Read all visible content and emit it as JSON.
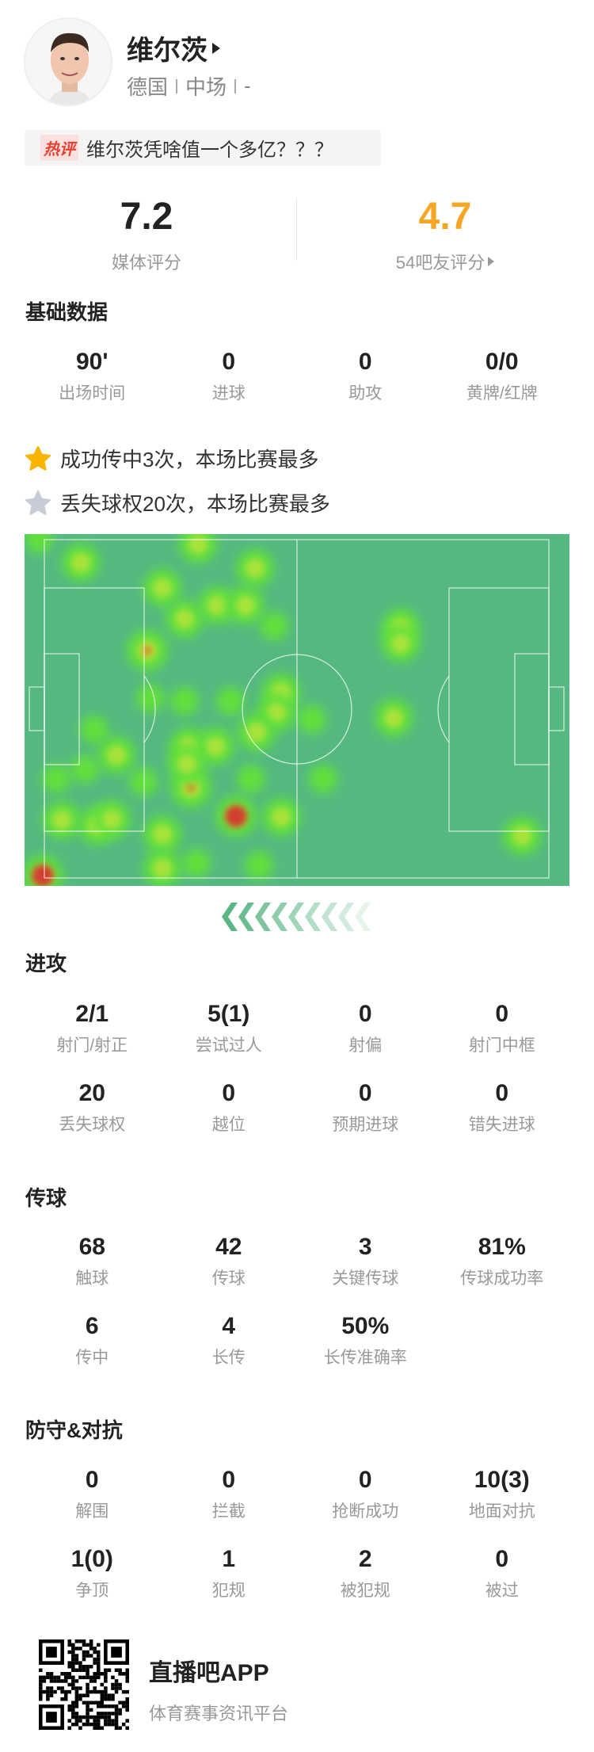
{
  "player": {
    "name": "维尔茨",
    "country": "德国",
    "position": "中场",
    "number": "-"
  },
  "hot_comment": {
    "tag": "热评",
    "text": "维尔茨凭啥值一个多亿？？？"
  },
  "ratings": {
    "media": {
      "value": "7.2",
      "label": "媒体评分"
    },
    "fans": {
      "value": "4.7",
      "label": "54吧友评分"
    }
  },
  "colors": {
    "fan_rating": "#f5a623",
    "pitch": "#55b881",
    "gold_star": "#f8b400",
    "grey_star": "#c8ccd6"
  },
  "sections": [
    {
      "title": "基础数据",
      "rows": [
        [
          {
            "v": "90'",
            "l": "出场时间"
          },
          {
            "v": "0",
            "l": "进球"
          },
          {
            "v": "0",
            "l": "助攻"
          },
          {
            "v": "0/0",
            "l": "黄牌/红牌"
          }
        ]
      ]
    },
    {
      "title": "进攻",
      "rows": [
        [
          {
            "v": "2/1",
            "l": "射门/射正"
          },
          {
            "v": "5(1)",
            "l": "尝试过人"
          },
          {
            "v": "0",
            "l": "射偏"
          },
          {
            "v": "0",
            "l": "射门中框"
          }
        ],
        [
          {
            "v": "20",
            "l": "丢失球权"
          },
          {
            "v": "0",
            "l": "越位"
          },
          {
            "v": "0",
            "l": "预期进球"
          },
          {
            "v": "0",
            "l": "错失进球"
          }
        ]
      ]
    },
    {
      "title": "传球",
      "rows": [
        [
          {
            "v": "68",
            "l": "触球"
          },
          {
            "v": "42",
            "l": "传球"
          },
          {
            "v": "3",
            "l": "关键传球"
          },
          {
            "v": "81%",
            "l": "传球成功率"
          }
        ],
        [
          {
            "v": "6",
            "l": "传中"
          },
          {
            "v": "4",
            "l": "长传"
          },
          {
            "v": "50%",
            "l": "长传准确率"
          }
        ]
      ]
    },
    {
      "title": "防守&对抗",
      "rows": [
        [
          {
            "v": "0",
            "l": "解围"
          },
          {
            "v": "0",
            "l": "拦截"
          },
          {
            "v": "0",
            "l": "抢断成功"
          },
          {
            "v": "10(3)",
            "l": "地面对抗"
          }
        ],
        [
          {
            "v": "1(0)",
            "l": "争顶"
          },
          {
            "v": "1",
            "l": "犯规"
          },
          {
            "v": "2",
            "l": "被犯规"
          },
          {
            "v": "0",
            "l": "被过"
          }
        ]
      ]
    }
  ],
  "highlights": [
    {
      "icon": "gold-star-icon",
      "text": "成功传中3次，本场比赛最多"
    },
    {
      "icon": "grey-star-icon",
      "text": "丢失球权20次，本场比赛最多"
    }
  ],
  "footer": {
    "app": "直播吧APP",
    "tagline": "体育赛事资讯平台"
  }
}
